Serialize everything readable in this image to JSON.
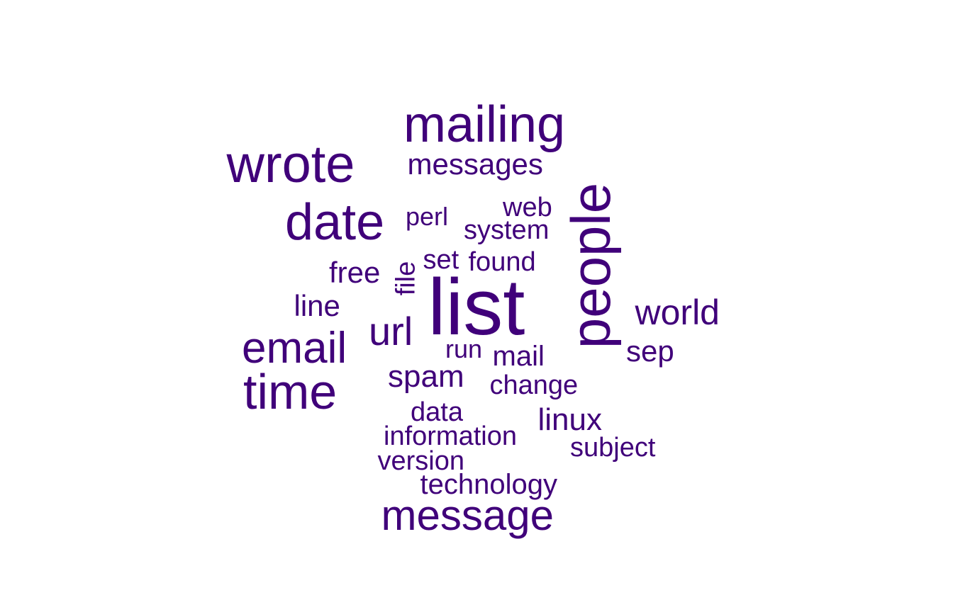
{
  "chart_data": {
    "type": "wordcloud",
    "title": "",
    "color": "#40007a",
    "words": [
      {
        "text": "list",
        "rank": 1
      },
      {
        "text": "people",
        "rank": 2
      },
      {
        "text": "mailing",
        "rank": 3
      },
      {
        "text": "wrote",
        "rank": 4
      },
      {
        "text": "date",
        "rank": 5
      },
      {
        "text": "email",
        "rank": 6
      },
      {
        "text": "time",
        "rank": 7
      },
      {
        "text": "message",
        "rank": 8
      },
      {
        "text": "url",
        "rank": 9
      },
      {
        "text": "world",
        "rank": 10
      },
      {
        "text": "messages",
        "rank": 11
      },
      {
        "text": "free",
        "rank": 12
      },
      {
        "text": "spam",
        "rank": 13
      },
      {
        "text": "linux",
        "rank": 14
      },
      {
        "text": "line",
        "rank": 15
      },
      {
        "text": "sep",
        "rank": 16
      },
      {
        "text": "system",
        "rank": 17
      },
      {
        "text": "perl",
        "rank": 18
      },
      {
        "text": "mail",
        "rank": 19
      },
      {
        "text": "web",
        "rank": 20
      },
      {
        "text": "found",
        "rank": 21
      },
      {
        "text": "information",
        "rank": 22
      },
      {
        "text": "technology",
        "rank": 23
      },
      {
        "text": "file",
        "rank": 24
      },
      {
        "text": "set",
        "rank": 25
      },
      {
        "text": "run",
        "rank": 26
      },
      {
        "text": "change",
        "rank": 27
      },
      {
        "text": "data",
        "rank": 28
      },
      {
        "text": "version",
        "rank": 29
      },
      {
        "text": "subject",
        "rank": 30
      }
    ]
  }
}
